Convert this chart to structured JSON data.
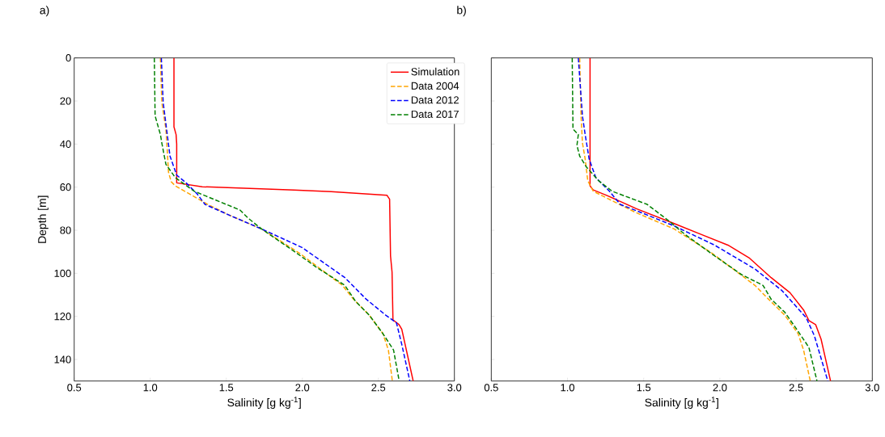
{
  "chart_data": [
    {
      "type": "line",
      "title": "a)",
      "xlabel": "Salinity [g kg$^{-1}$]",
      "ylabel": "Depth [m]",
      "xlim": [
        0.5,
        3.0
      ],
      "ylim": [
        150,
        0
      ],
      "xticks": [
        0.5,
        {
          "value": 1,
          "label": "1.0"
        },
        1.5,
        {
          "value": 2,
          "label": "2.0"
        },
        2.5,
        {
          "value": 3,
          "label": "3.0"
        }
      ],
      "yticks": [
        0,
        20,
        40,
        60,
        80,
        100,
        120,
        140
      ],
      "legend": "top right",
      "series": [
        {
          "name": "Simulation",
          "color": "#ff0000",
          "line_style": "solid",
          "x": [
            1.156,
            1.156,
            1.17,
            1.174,
            1.174,
            1.342,
            1.945,
            2.19,
            2.557,
            2.574,
            2.58,
            2.59,
            2.596,
            2.636,
            2.654,
            2.729
          ],
          "values": [
            0,
            32,
            35.6,
            40,
            58,
            59.8,
            61.3,
            62.1,
            63.8,
            65.6,
            91.9,
            99.4,
            121.6,
            123.8,
            126,
            150
          ]
        },
        {
          "name": "Data 2004",
          "color": "#ffa500",
          "line_style": "dashed",
          "x": [
            1.067,
            1.076,
            1.103,
            1.112,
            1.12,
            1.138,
            1.165,
            1.254,
            1.378,
            1.52,
            1.732,
            1.98,
            2.264,
            2.335,
            2.44,
            2.53,
            2.566,
            2.592
          ],
          "values": [
            0,
            20.6,
            33,
            43,
            53,
            57.5,
            59.4,
            63,
            68,
            73,
            79.4,
            90.6,
            105.6,
            111.9,
            119.4,
            128,
            135.6,
            150
          ]
        },
        {
          "name": "Data 2012",
          "color": "#0000ff",
          "line_style": "dashed",
          "x": [
            1.073,
            1.085,
            1.103,
            1.13,
            1.174,
            1.236,
            1.307,
            1.36,
            1.52,
            1.732,
            1.998,
            2.28,
            2.42,
            2.548,
            2.619,
            2.654,
            2.707
          ],
          "values": [
            0,
            20.6,
            30.6,
            45.6,
            54.4,
            58,
            63,
            68,
            73,
            79.4,
            88,
            102,
            112,
            119.4,
            123,
            133,
            150
          ]
        },
        {
          "name": "Data 2017",
          "color": "#008000",
          "line_style": "dashed",
          "x": [
            1.027,
            1.032,
            1.067,
            1.076,
            1.103,
            1.165,
            1.289,
            1.5,
            1.59,
            1.644,
            1.732,
            1.963,
            2.087,
            2.28,
            2.35,
            2.44,
            2.53,
            2.6,
            2.637
          ],
          "values": [
            0,
            26.9,
            35.6,
            39.4,
            49.4,
            55.6,
            61.9,
            68,
            70.6,
            74.4,
            79.4,
            90.6,
            96.9,
            105.6,
            113,
            119.4,
            128,
            135.6,
            150
          ]
        }
      ]
    },
    {
      "type": "line",
      "title": "b)",
      "xlabel": "Salinity [g kg$^{-1}$]",
      "xlim": [
        0.5,
        3.0
      ],
      "ylim": [
        150,
        0
      ],
      "tick_labels": "x",
      "xticks": [
        0.5,
        {
          "value": 1,
          "label": "1.0"
        },
        1.5,
        {
          "value": 2,
          "label": "2.0"
        },
        2.5,
        {
          "value": 3,
          "label": "3.0"
        }
      ],
      "yticks": [
        0,
        20,
        40,
        60,
        80,
        100,
        120,
        140
      ],
      "series": [
        {
          "color": "#ff0000",
          "line_style": "solid",
          "x": [
            1.148,
            1.148,
            1.169,
            1.257,
            1.452,
            1.7,
            1.876,
            2.053,
            2.195,
            2.336,
            2.46,
            2.549,
            2.584,
            2.628,
            2.664,
            2.726
          ],
          "values": [
            0,
            59.4,
            61.3,
            63.8,
            70,
            76.9,
            81.9,
            86.9,
            93,
            102,
            109,
            117,
            121.9,
            123.8,
            130.6,
            150
          ]
        },
        {
          "color": "#ffa500",
          "line_style": "dashed",
          "x": [
            1.08,
            1.089,
            1.098,
            1.116,
            1.133,
            1.169,
            1.31,
            1.452,
            1.7,
            1.947,
            2.23,
            2.319,
            2.425,
            2.513,
            2.549,
            2.593
          ],
          "values": [
            0,
            26.9,
            39.4,
            46.9,
            57,
            61.9,
            66.9,
            71.9,
            79.4,
            90.6,
            105.6,
            112,
            119.4,
            128,
            135.6,
            150
          ]
        },
        {
          "color": "#0000ff",
          "line_style": "dashed",
          "x": [
            1.071,
            1.098,
            1.116,
            1.142,
            1.186,
            1.275,
            1.346,
            1.487,
            1.7,
            1.965,
            2.23,
            2.407,
            2.566,
            2.62,
            2.708
          ],
          "values": [
            0,
            26.9,
            35.6,
            46.9,
            55.6,
            61.9,
            68,
            71.9,
            78,
            86.9,
            98,
            108,
            120.6,
            129,
            150
          ]
        },
        {
          "color": "#008000",
          "line_style": "dashed",
          "x": [
            1.031,
            1.036,
            1.071,
            1.062,
            1.08,
            1.124,
            1.204,
            1.293,
            1.523,
            1.664,
            1.77,
            1.965,
            2.142,
            2.283,
            2.336,
            2.425,
            2.513,
            2.584,
            2.637
          ],
          "values": [
            0,
            33,
            35.6,
            40.6,
            45.6,
            50.6,
            57,
            61.9,
            68,
            75.6,
            81.9,
            91.9,
            100.6,
            105.6,
            112,
            118,
            126.9,
            134.4,
            150
          ]
        }
      ]
    }
  ]
}
